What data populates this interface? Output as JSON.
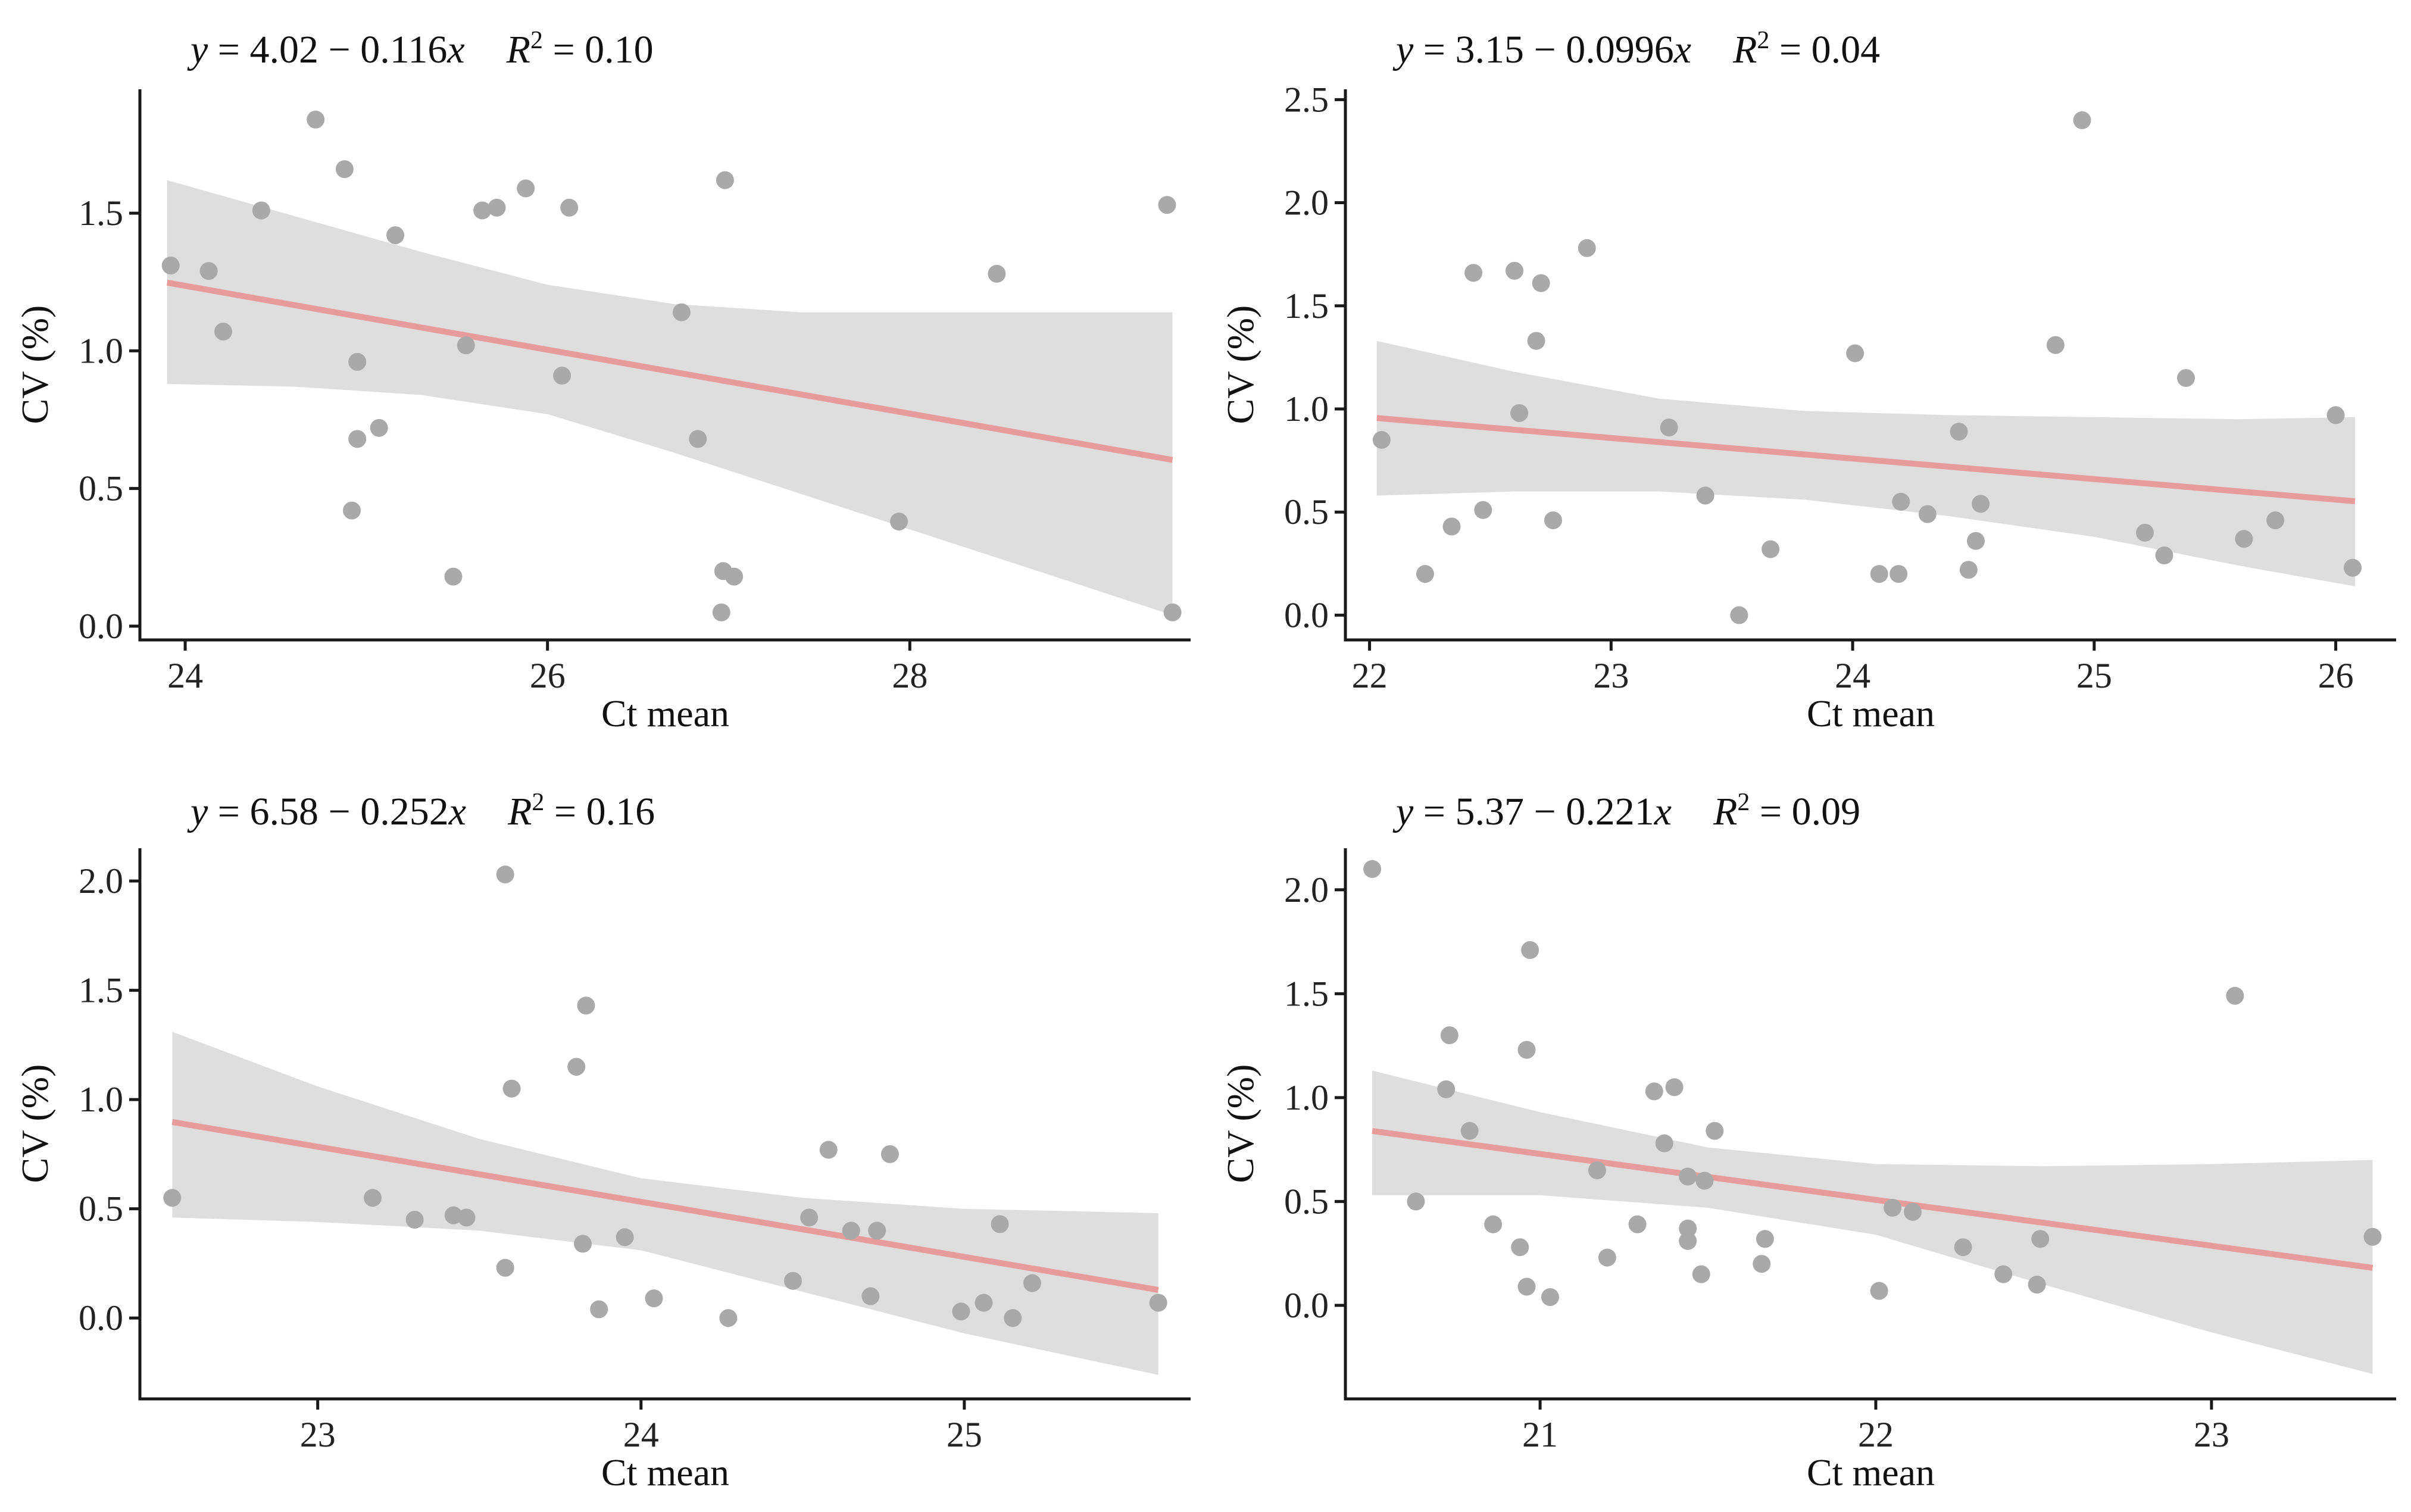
{
  "chart_data": [
    {
      "type": "scatter",
      "equation": {
        "y": "y",
        "lhs": " = ",
        "intercept": "4.02",
        "minus": " − ",
        "slope": "0.116",
        "x": "x",
        "r": "R",
        "r_exp": "2",
        "r_rhs": " = 0.10"
      },
      "xlabel": "Ct mean",
      "ylabel": "CV (%)",
      "xlim": [
        23.75,
        29.55
      ],
      "ylim": [
        -0.05,
        1.95
      ],
      "xticks": [
        24,
        26,
        28
      ],
      "xtick_labels": [
        "24",
        "26",
        "28"
      ],
      "yticks": [
        0.0,
        0.5,
        1.0,
        1.5
      ],
      "ytick_labels": [
        "0.0",
        "0.5",
        "1.0",
        "1.5"
      ],
      "intercept": 4.02,
      "slope": -0.116,
      "band": {
        "x": [
          23.9,
          24.6,
          25.3,
          26.0,
          26.7,
          27.4,
          28.1,
          28.8,
          29.45
        ],
        "lower": [
          0.88,
          0.87,
          0.84,
          0.77,
          0.63,
          0.48,
          0.33,
          0.18,
          0.04
        ],
        "upper": [
          1.62,
          1.49,
          1.36,
          1.24,
          1.17,
          1.14,
          1.14,
          1.14,
          1.14
        ]
      },
      "points": [
        {
          "x": 23.92,
          "y": 1.31
        },
        {
          "x": 24.13,
          "y": 1.29
        },
        {
          "x": 24.21,
          "y": 1.07
        },
        {
          "x": 24.42,
          "y": 1.51
        },
        {
          "x": 24.72,
          "y": 1.84
        },
        {
          "x": 24.88,
          "y": 1.66
        },
        {
          "x": 24.92,
          "y": 0.42
        },
        {
          "x": 24.95,
          "y": 0.68
        },
        {
          "x": 24.95,
          "y": 0.96
        },
        {
          "x": 25.07,
          "y": 0.72
        },
        {
          "x": 25.16,
          "y": 1.42
        },
        {
          "x": 25.48,
          "y": 0.18
        },
        {
          "x": 25.55,
          "y": 1.02
        },
        {
          "x": 25.64,
          "y": 1.51
        },
        {
          "x": 25.72,
          "y": 1.52
        },
        {
          "x": 25.88,
          "y": 1.59
        },
        {
          "x": 26.08,
          "y": 0.91
        },
        {
          "x": 26.12,
          "y": 1.52
        },
        {
          "x": 26.74,
          "y": 1.14
        },
        {
          "x": 26.83,
          "y": 0.68
        },
        {
          "x": 26.96,
          "y": 0.05
        },
        {
          "x": 26.97,
          "y": 0.2
        },
        {
          "x": 26.98,
          "y": 1.62
        },
        {
          "x": 27.03,
          "y": 0.18
        },
        {
          "x": 27.94,
          "y": 0.38
        },
        {
          "x": 28.48,
          "y": 1.28
        },
        {
          "x": 29.42,
          "y": 1.53
        },
        {
          "x": 29.45,
          "y": 0.05
        }
      ]
    },
    {
      "type": "scatter",
      "equation": {
        "y": "y",
        "lhs": " = ",
        "intercept": "3.15",
        "minus": " − ",
        "slope": "0.0996",
        "x": "x",
        "r": "R",
        "r_exp": "2",
        "r_rhs": " = 0.04"
      },
      "xlabel": "Ct mean",
      "ylabel": "CV (%)",
      "xlim": [
        21.9,
        26.25
      ],
      "ylim": [
        -0.12,
        2.55
      ],
      "xticks": [
        22,
        23,
        24,
        25,
        26
      ],
      "xtick_labels": [
        "22",
        "23",
        "24",
        "25",
        "26"
      ],
      "yticks": [
        0.0,
        0.5,
        1.0,
        1.5,
        2.0,
        2.5
      ],
      "ytick_labels": [
        "0.0",
        "0.5",
        "1.0",
        "1.5",
        "2.0",
        "2.5"
      ],
      "intercept": 3.15,
      "slope": -0.0996,
      "band": {
        "x": [
          22.03,
          22.6,
          23.2,
          23.8,
          24.4,
          25.0,
          25.6,
          26.08
        ],
        "lower": [
          0.58,
          0.6,
          0.6,
          0.56,
          0.48,
          0.38,
          0.24,
          0.14
        ],
        "upper": [
          1.33,
          1.18,
          1.05,
          0.99,
          0.97,
          0.96,
          0.95,
          0.96
        ]
      },
      "points": [
        {
          "x": 22.05,
          "y": 0.85
        },
        {
          "x": 22.23,
          "y": 0.2
        },
        {
          "x": 22.34,
          "y": 0.43
        },
        {
          "x": 22.43,
          "y": 1.66
        },
        {
          "x": 22.47,
          "y": 0.51
        },
        {
          "x": 22.6,
          "y": 1.67
        },
        {
          "x": 22.62,
          "y": 0.98
        },
        {
          "x": 22.69,
          "y": 1.33
        },
        {
          "x": 22.71,
          "y": 1.61
        },
        {
          "x": 22.76,
          "y": 0.46
        },
        {
          "x": 22.9,
          "y": 1.78
        },
        {
          "x": 23.24,
          "y": 0.91
        },
        {
          "x": 23.39,
          "y": 0.58
        },
        {
          "x": 23.53,
          "y": 0.0
        },
        {
          "x": 23.66,
          "y": 0.32
        },
        {
          "x": 24.01,
          "y": 1.27
        },
        {
          "x": 24.11,
          "y": 0.2
        },
        {
          "x": 24.19,
          "y": 0.2
        },
        {
          "x": 24.2,
          "y": 0.55
        },
        {
          "x": 24.31,
          "y": 0.49
        },
        {
          "x": 24.44,
          "y": 0.89
        },
        {
          "x": 24.48,
          "y": 0.22
        },
        {
          "x": 24.51,
          "y": 0.36
        },
        {
          "x": 24.53,
          "y": 0.54
        },
        {
          "x": 24.84,
          "y": 1.31
        },
        {
          "x": 24.95,
          "y": 2.4
        },
        {
          "x": 25.21,
          "y": 0.4
        },
        {
          "x": 25.29,
          "y": 0.29
        },
        {
          "x": 25.38,
          "y": 1.15
        },
        {
          "x": 25.62,
          "y": 0.37
        },
        {
          "x": 25.75,
          "y": 0.46
        },
        {
          "x": 26.0,
          "y": 0.97
        },
        {
          "x": 26.07,
          "y": 0.23
        }
      ]
    },
    {
      "type": "scatter",
      "equation": {
        "y": "y",
        "lhs": " = ",
        "intercept": "6.58",
        "minus": " − ",
        "slope": "0.252",
        "x": "x",
        "r": "R",
        "r_exp": "2",
        "r_rhs": " = 0.16"
      },
      "xlabel": "Ct mean",
      "ylabel": "CV (%)",
      "xlim": [
        22.45,
        25.7
      ],
      "ylim": [
        -0.37,
        2.15
      ],
      "xticks": [
        23,
        24,
        25
      ],
      "xtick_labels": [
        "23",
        "24",
        "25"
      ],
      "yticks": [
        0.0,
        0.5,
        1.0,
        1.5,
        2.0
      ],
      "ytick_labels": [
        "0.0",
        "0.5",
        "1.0",
        "1.5",
        "2.0"
      ],
      "intercept": 6.58,
      "slope": -0.252,
      "band": {
        "x": [
          22.55,
          23.0,
          23.5,
          24.0,
          24.5,
          25.0,
          25.6
        ],
        "lower": [
          0.46,
          0.44,
          0.4,
          0.31,
          0.12,
          -0.07,
          -0.26
        ],
        "upper": [
          1.31,
          1.06,
          0.82,
          0.64,
          0.55,
          0.5,
          0.48
        ]
      },
      "points": [
        {
          "x": 22.55,
          "y": 0.55
        },
        {
          "x": 23.17,
          "y": 0.55
        },
        {
          "x": 23.3,
          "y": 0.45
        },
        {
          "x": 23.42,
          "y": 0.47
        },
        {
          "x": 23.46,
          "y": 0.46
        },
        {
          "x": 23.58,
          "y": 2.03
        },
        {
          "x": 23.58,
          "y": 0.23
        },
        {
          "x": 23.6,
          "y": 1.05
        },
        {
          "x": 23.8,
          "y": 1.15
        },
        {
          "x": 23.82,
          "y": 0.34
        },
        {
          "x": 23.83,
          "y": 1.43
        },
        {
          "x": 23.87,
          "y": 0.04
        },
        {
          "x": 23.95,
          "y": 0.37
        },
        {
          "x": 24.04,
          "y": 0.09
        },
        {
          "x": 24.27,
          "y": 0.0
        },
        {
          "x": 24.47,
          "y": 0.17
        },
        {
          "x": 24.52,
          "y": 0.46
        },
        {
          "x": 24.58,
          "y": 0.77
        },
        {
          "x": 24.65,
          "y": 0.4
        },
        {
          "x": 24.71,
          "y": 0.1
        },
        {
          "x": 24.73,
          "y": 0.4
        },
        {
          "x": 24.77,
          "y": 0.75
        },
        {
          "x": 24.99,
          "y": 0.03
        },
        {
          "x": 25.06,
          "y": 0.07
        },
        {
          "x": 25.11,
          "y": 0.43
        },
        {
          "x": 25.15,
          "y": 0.0
        },
        {
          "x": 25.21,
          "y": 0.16
        },
        {
          "x": 25.6,
          "y": 0.07
        }
      ]
    },
    {
      "type": "scatter",
      "equation": {
        "y": "y",
        "lhs": " = ",
        "intercept": "5.37",
        "minus": " − ",
        "slope": "0.221",
        "x": "x",
        "r": "R",
        "r_exp": "2",
        "r_rhs": " = 0.09"
      },
      "xlabel": "Ct mean",
      "ylabel": "CV (%)",
      "xlim": [
        20.42,
        23.55
      ],
      "ylim": [
        -0.45,
        2.2
      ],
      "xticks": [
        21,
        22,
        23
      ],
      "xtick_labels": [
        "21",
        "22",
        "23"
      ],
      "yticks": [
        0.0,
        0.5,
        1.0,
        1.5,
        2.0
      ],
      "ytick_labels": [
        "0.0",
        "0.5",
        "1.0",
        "1.5",
        "2.0"
      ],
      "intercept": 5.37,
      "slope": -0.221,
      "band": {
        "x": [
          20.5,
          21.0,
          21.5,
          22.0,
          22.5,
          23.0,
          23.48
        ],
        "lower": [
          0.53,
          0.53,
          0.47,
          0.34,
          0.1,
          -0.13,
          -0.33
        ],
        "upper": [
          1.13,
          0.93,
          0.76,
          0.68,
          0.67,
          0.68,
          0.7
        ]
      },
      "points": [
        {
          "x": 20.5,
          "y": 2.1
        },
        {
          "x": 20.63,
          "y": 0.5
        },
        {
          "x": 20.72,
          "y": 1.04
        },
        {
          "x": 20.73,
          "y": 1.3
        },
        {
          "x": 20.79,
          "y": 0.84
        },
        {
          "x": 20.86,
          "y": 0.39
        },
        {
          "x": 20.94,
          "y": 0.28
        },
        {
          "x": 20.96,
          "y": 1.23
        },
        {
          "x": 20.96,
          "y": 0.09
        },
        {
          "x": 20.97,
          "y": 1.71
        },
        {
          "x": 21.03,
          "y": 0.04
        },
        {
          "x": 21.17,
          "y": 0.65
        },
        {
          "x": 21.2,
          "y": 0.23
        },
        {
          "x": 21.29,
          "y": 0.39
        },
        {
          "x": 21.34,
          "y": 1.03
        },
        {
          "x": 21.37,
          "y": 0.78
        },
        {
          "x": 21.4,
          "y": 1.05
        },
        {
          "x": 21.44,
          "y": 0.62
        },
        {
          "x": 21.44,
          "y": 0.37
        },
        {
          "x": 21.44,
          "y": 0.31
        },
        {
          "x": 21.48,
          "y": 0.15
        },
        {
          "x": 21.49,
          "y": 0.6
        },
        {
          "x": 21.52,
          "y": 0.84
        },
        {
          "x": 21.66,
          "y": 0.2
        },
        {
          "x": 21.67,
          "y": 0.32
        },
        {
          "x": 22.01,
          "y": 0.07
        },
        {
          "x": 22.05,
          "y": 0.47
        },
        {
          "x": 22.11,
          "y": 0.45
        },
        {
          "x": 22.26,
          "y": 0.28
        },
        {
          "x": 22.38,
          "y": 0.15
        },
        {
          "x": 22.48,
          "y": 0.1
        },
        {
          "x": 22.49,
          "y": 0.32
        },
        {
          "x": 23.07,
          "y": 1.49
        },
        {
          "x": 23.48,
          "y": 0.33
        }
      ]
    }
  ],
  "colors": {
    "points": "#a9a9a9",
    "band": "#dedede",
    "line": "#e89b9b",
    "axis": "#1a1a1a",
    "text": "#111111"
  }
}
